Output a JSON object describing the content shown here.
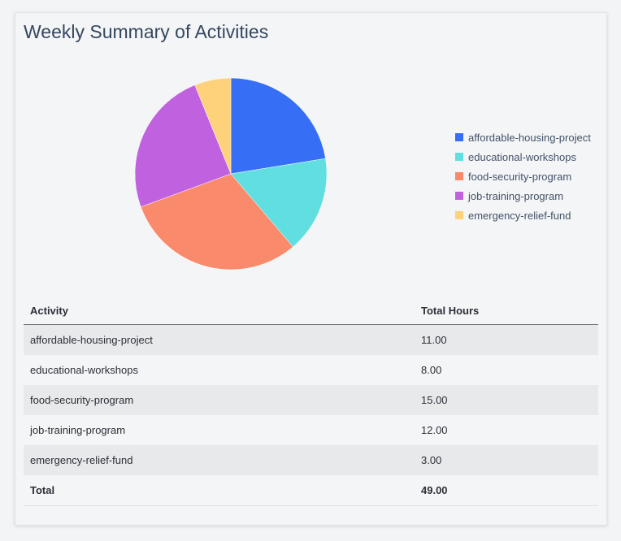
{
  "title": "Weekly Summary of Activities",
  "chart_data": {
    "type": "pie",
    "categories": [
      "affordable-housing-project",
      "educational-workshops",
      "food-security-program",
      "job-training-program",
      "emergency-relief-fund"
    ],
    "values": [
      11,
      8,
      15,
      12,
      3
    ],
    "colors": [
      "#366ef5",
      "#61dfe0",
      "#f98a6b",
      "#c062e0",
      "#fed17b"
    ],
    "legend_position": "right",
    "start": "top, clockwise"
  },
  "table": {
    "headers": [
      "Activity",
      "Total Hours"
    ],
    "rows": [
      [
        "affordable-housing-project",
        "11.00"
      ],
      [
        "educational-workshops",
        "8.00"
      ],
      [
        "food-security-program",
        "15.00"
      ],
      [
        "job-training-program",
        "12.00"
      ],
      [
        "emergency-relief-fund",
        "3.00"
      ]
    ],
    "total": [
      "Total",
      "49.00"
    ]
  }
}
